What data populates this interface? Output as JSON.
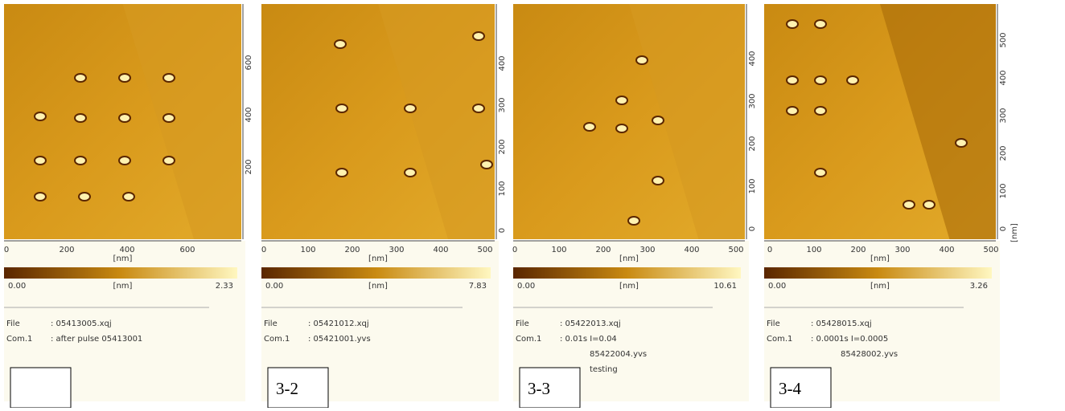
{
  "panels": [
    {
      "y_ticks": [
        "200",
        "400",
        "600"
      ],
      "x_ticks": [
        "0",
        "200",
        "400",
        "600"
      ],
      "x_unit": "[nm]",
      "colorbar": {
        "min": "0.00",
        "unit": "[nm]",
        "max": "2.33"
      },
      "info": [
        [
          "File",
          ": 05413005.xqj"
        ],
        [
          "Com.1",
          ": after pulse 05413001"
        ]
      ]
    },
    {
      "y_ticks": [
        "0",
        "100",
        "200",
        "300",
        "400"
      ],
      "x_ticks": [
        "0",
        "100",
        "200",
        "300",
        "400",
        "500"
      ],
      "x_unit": "[nm]",
      "colorbar": {
        "min": "0.00",
        "unit": "[nm]",
        "max": "7.83"
      },
      "info": [
        [
          "File",
          ": 05421012.xqj"
        ],
        [
          "Com.1",
          ": 05421001.yvs"
        ]
      ],
      "label": "3-2"
    },
    {
      "y_ticks": [
        "0",
        "100",
        "200",
        "300",
        "400"
      ],
      "x_ticks": [
        "0",
        "100",
        "200",
        "300",
        "400",
        "500"
      ],
      "x_unit": "[nm]",
      "colorbar": {
        "min": "0.00",
        "unit": "[nm]",
        "max": "10.61"
      },
      "info": [
        [
          "File",
          ": 05422013.xqj"
        ],
        [
          "Com.1",
          ": 0.01s I=0.04"
        ],
        [
          "",
          "85422004.yvs"
        ],
        [
          "",
          "testing"
        ]
      ],
      "label": "3-3"
    },
    {
      "y_ticks": [
        "0",
        "100",
        "200",
        "300",
        "400",
        "500"
      ],
      "y_unit": "[nm]",
      "x_ticks": [
        "0",
        "100",
        "200",
        "300",
        "400",
        "500"
      ],
      "x_unit": "[nm]",
      "colorbar": {
        "min": "0.00",
        "unit": "[nm]",
        "max": "3.26"
      },
      "info": [
        [
          "File",
          ": 05428015.xqj"
        ],
        [
          "Com.1",
          ": 0.0001s I=0.0005"
        ],
        [
          "",
          "85428002.yvs"
        ]
      ],
      "label": "3-4"
    }
  ]
}
